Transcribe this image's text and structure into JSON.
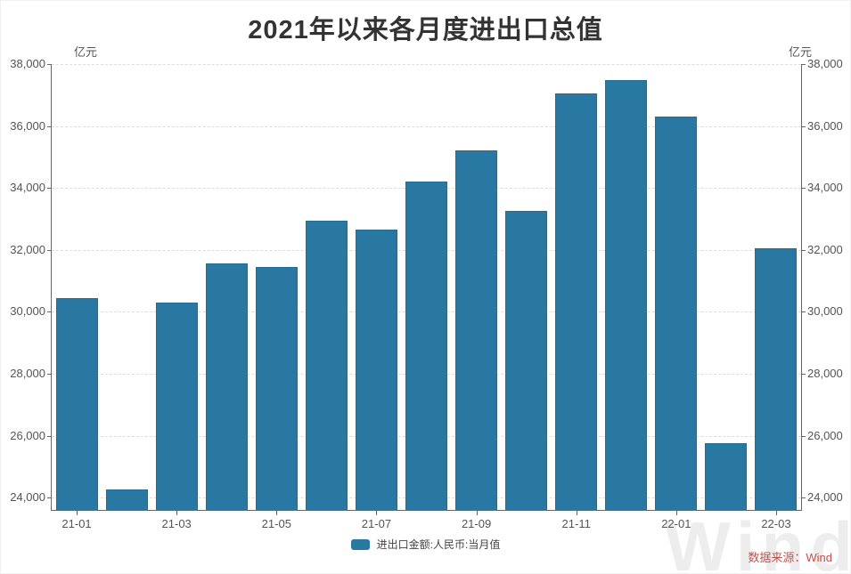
{
  "title": "2021年以来各月度进出口总值",
  "axis": {
    "unit_left": "亿元",
    "unit_right": "亿元"
  },
  "legend": {
    "label": "进出口金额:人民币:当月值"
  },
  "source": "数据来源：Wind",
  "watermark": "Wind",
  "colors": {
    "bar_fill": "#2878a2",
    "bar_border": "#1f6e99",
    "title_text": "#333333",
    "axis_text": "#555555",
    "axis_line": "#666666",
    "gridline": "#dddddd",
    "source_text": "#c0504d",
    "watermark_text": "#ededed"
  },
  "chart_data": {
    "type": "bar",
    "title": "2021年以来各月度进出口总值",
    "ylabel": "亿元",
    "categories": [
      "21-01",
      "21-02",
      "21-03",
      "21-04",
      "21-05",
      "21-06",
      "21-07",
      "21-08",
      "21-09",
      "21-10",
      "21-11",
      "21-12",
      "22-01",
      "22-02",
      "22-03"
    ],
    "values": [
      30450,
      24250,
      30300,
      31550,
      31450,
      32950,
      32650,
      34200,
      35200,
      33270,
      37050,
      37480,
      36300,
      25750,
      32050
    ],
    "series_name": "进出口金额:人民币:当月值",
    "x_labeled_ticks": [
      "21-01",
      "21-03",
      "21-05",
      "21-07",
      "21-09",
      "21-11",
      "22-01",
      "22-03"
    ],
    "yticks": [
      24000,
      26000,
      28000,
      30000,
      32000,
      34000,
      36000,
      38000
    ],
    "ylim": [
      23600,
      38000
    ],
    "grid": "dashed-horizontal",
    "legend_position": "bottom",
    "axes_mirrored": true
  }
}
